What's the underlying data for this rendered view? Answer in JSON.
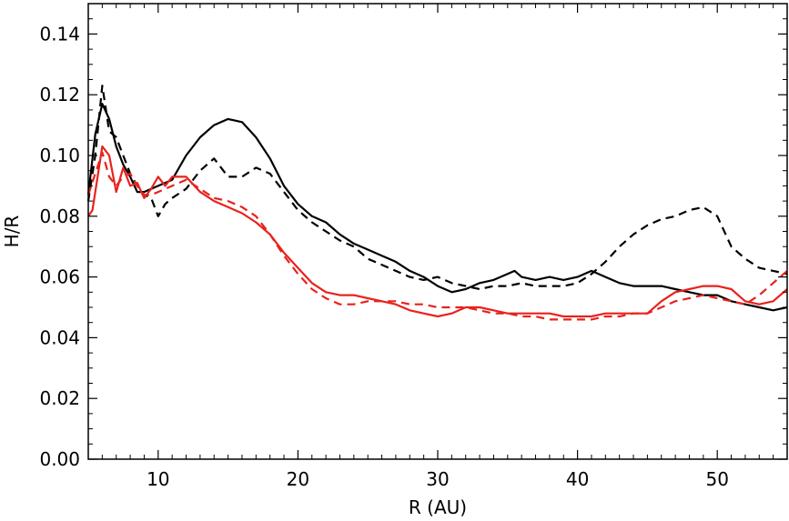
{
  "chart_data": {
    "type": "line",
    "title": "",
    "xlabel": "R (AU)",
    "ylabel": "H/R",
    "xlim": [
      5,
      55
    ],
    "ylim": [
      0,
      0.15
    ],
    "xticks": [
      10,
      20,
      30,
      40,
      50
    ],
    "xtick_labels": [
      "10",
      "20",
      "30",
      "40",
      "50"
    ],
    "yticks": [
      0.0,
      0.02,
      0.04,
      0.06,
      0.08,
      0.1,
      0.12,
      0.14
    ],
    "ytick_labels": [
      "0.00",
      "0.02",
      "0.04",
      "0.06",
      "0.08",
      "0.10",
      "0.12",
      "0.14"
    ],
    "grid": false,
    "legend": "none",
    "series": [
      {
        "color": "#000000",
        "dash": "solid",
        "x": [
          5,
          5.5,
          6,
          6.5,
          7,
          7.5,
          8,
          8.5,
          9,
          9.5,
          10,
          10.5,
          11,
          12,
          13,
          14,
          15,
          16,
          17,
          18,
          19,
          20,
          21,
          22,
          23,
          24,
          25,
          26,
          27,
          28,
          29,
          30,
          31,
          32,
          33,
          34,
          35,
          35.5,
          36,
          37,
          38,
          39,
          40,
          41,
          42,
          43,
          44,
          45,
          46,
          47,
          48,
          49,
          50,
          51,
          52,
          53,
          54,
          55
        ],
        "y": [
          0.087,
          0.107,
          0.117,
          0.112,
          0.103,
          0.097,
          0.093,
          0.088,
          0.088,
          0.089,
          0.09,
          0.091,
          0.092,
          0.1,
          0.106,
          0.11,
          0.112,
          0.111,
          0.106,
          0.099,
          0.09,
          0.084,
          0.08,
          0.078,
          0.074,
          0.071,
          0.069,
          0.067,
          0.065,
          0.062,
          0.06,
          0.057,
          0.055,
          0.056,
          0.058,
          0.059,
          0.061,
          0.062,
          0.06,
          0.059,
          0.06,
          0.059,
          0.06,
          0.062,
          0.06,
          0.058,
          0.057,
          0.057,
          0.057,
          0.056,
          0.055,
          0.054,
          0.054,
          0.052,
          0.051,
          0.05,
          0.049,
          0.05
        ]
      },
      {
        "color": "#000000",
        "dash": "dashed",
        "x": [
          5,
          5.5,
          6,
          6.5,
          7,
          7.5,
          8,
          8.5,
          9,
          9.5,
          10,
          10.5,
          11,
          12,
          13,
          14,
          15,
          16,
          17,
          18,
          19,
          20,
          21,
          22,
          23,
          24,
          25,
          26,
          27,
          28,
          29,
          30,
          31,
          32,
          33,
          34,
          35,
          36,
          37,
          38,
          39,
          40,
          41,
          42,
          43,
          44,
          45,
          46,
          47,
          48,
          49,
          50,
          51,
          52,
          53,
          54,
          55
        ],
        "y": [
          0.085,
          0.1,
          0.123,
          0.108,
          0.106,
          0.1,
          0.094,
          0.09,
          0.087,
          0.086,
          0.08,
          0.084,
          0.086,
          0.089,
          0.095,
          0.099,
          0.093,
          0.093,
          0.096,
          0.094,
          0.088,
          0.082,
          0.078,
          0.075,
          0.072,
          0.07,
          0.066,
          0.064,
          0.062,
          0.06,
          0.059,
          0.06,
          0.058,
          0.057,
          0.056,
          0.057,
          0.057,
          0.058,
          0.057,
          0.057,
          0.057,
          0.058,
          0.061,
          0.065,
          0.07,
          0.074,
          0.077,
          0.079,
          0.08,
          0.082,
          0.083,
          0.08,
          0.07,
          0.066,
          0.063,
          0.062,
          0.061
        ]
      },
      {
        "color": "#e8221c",
        "dash": "solid",
        "x": [
          5,
          5.3,
          6,
          6.5,
          7,
          7.5,
          8,
          8.5,
          9,
          9.5,
          10,
          10.5,
          11,
          12,
          13,
          14,
          15,
          16,
          17,
          18,
          19,
          20,
          21,
          22,
          23,
          24,
          25,
          26,
          27,
          28,
          29,
          30,
          31,
          32,
          33,
          34,
          35,
          36,
          37,
          38,
          39,
          40,
          41,
          42,
          43,
          44,
          45,
          46,
          47,
          48,
          49,
          50,
          51,
          52,
          53,
          54,
          55
        ],
        "y": [
          0.08,
          0.082,
          0.103,
          0.1,
          0.088,
          0.096,
          0.09,
          0.091,
          0.086,
          0.089,
          0.093,
          0.09,
          0.093,
          0.093,
          0.088,
          0.085,
          0.083,
          0.081,
          0.078,
          0.074,
          0.068,
          0.063,
          0.058,
          0.055,
          0.054,
          0.054,
          0.053,
          0.052,
          0.051,
          0.049,
          0.048,
          0.047,
          0.048,
          0.05,
          0.05,
          0.049,
          0.048,
          0.048,
          0.048,
          0.048,
          0.047,
          0.047,
          0.047,
          0.048,
          0.048,
          0.048,
          0.048,
          0.052,
          0.055,
          0.056,
          0.057,
          0.057,
          0.056,
          0.052,
          0.051,
          0.052,
          0.056
        ]
      },
      {
        "color": "#e8221c",
        "dash": "dashed",
        "x": [
          5,
          5.5,
          6,
          6.5,
          7,
          7.5,
          8,
          8.5,
          9,
          9.5,
          10,
          10.5,
          11,
          12,
          13,
          14,
          15,
          16,
          17,
          18,
          19,
          20,
          21,
          22,
          23,
          24,
          25,
          26,
          27,
          28,
          29,
          30,
          31,
          32,
          33,
          34,
          35,
          36,
          37,
          38,
          39,
          40,
          41,
          42,
          43,
          44,
          45,
          46,
          47,
          48,
          49,
          50,
          51,
          52,
          53,
          54,
          55
        ],
        "y": [
          0.087,
          0.094,
          0.101,
          0.093,
          0.09,
          0.093,
          0.094,
          0.09,
          0.087,
          0.087,
          0.088,
          0.089,
          0.09,
          0.092,
          0.089,
          0.086,
          0.085,
          0.083,
          0.08,
          0.074,
          0.067,
          0.061,
          0.056,
          0.053,
          0.051,
          0.051,
          0.052,
          0.052,
          0.052,
          0.051,
          0.051,
          0.05,
          0.05,
          0.05,
          0.049,
          0.048,
          0.048,
          0.047,
          0.047,
          0.046,
          0.046,
          0.046,
          0.046,
          0.047,
          0.047,
          0.048,
          0.048,
          0.05,
          0.052,
          0.053,
          0.054,
          0.053,
          0.052,
          0.051,
          0.054,
          0.058,
          0.062
        ]
      }
    ]
  }
}
